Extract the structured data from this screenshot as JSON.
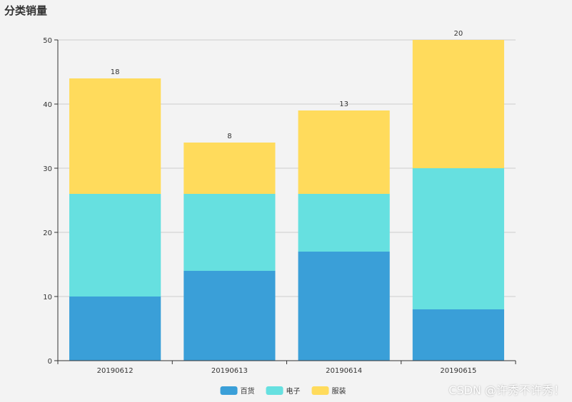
{
  "watermark": "CSDN @许秀不许秀！",
  "chart_data": {
    "type": "bar",
    "stacked": true,
    "title": "分类销量",
    "categories": [
      "20190612",
      "20190613",
      "20190614",
      "20190615"
    ],
    "series": [
      {
        "name": "百货",
        "values": [
          10,
          14,
          17,
          8
        ],
        "color": "#3a9fd8"
      },
      {
        "name": "电子",
        "values": [
          16,
          12,
          9,
          22
        ],
        "color": "#66e0e0"
      },
      {
        "name": "服装",
        "values": [
          18,
          8,
          13,
          20
        ],
        "color": "#ffdb5c"
      }
    ],
    "data_labels": [
      "18",
      "8",
      "13",
      "20"
    ],
    "ylim": [
      0,
      50
    ],
    "yticks": [
      "0",
      "10",
      "20",
      "30",
      "40",
      "50"
    ],
    "grid": true,
    "legend_position": "bottom-center"
  }
}
